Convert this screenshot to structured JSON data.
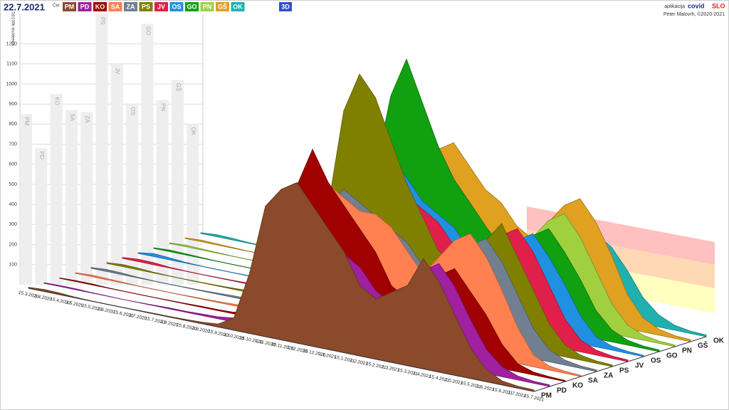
{
  "chart_data": {
    "type": "bar3d",
    "title": "22.7.2021",
    "subtitle": "Čet",
    "y_label": "7d/100k incidenca",
    "mode_button": "3D",
    "app_label": "aplikacija",
    "brand": "covid",
    "brand_suffix": "SLO",
    "author": "Peter Malovrh, ©2020-2021",
    "ylim": [
      0,
      1300
    ],
    "yticks": [
      100,
      200,
      300,
      400,
      500,
      600,
      700,
      800,
      900,
      1000,
      1100,
      1200
    ],
    "categories": [
      "15.3.2020",
      "1.4.2020",
      "15.4.2020",
      "1.5.2020",
      "15.5.2020",
      "1.6.2020",
      "15.6.2020",
      "1.7.2020",
      "15.7.2020",
      "1.8.2020",
      "15.8.2020",
      "1.9.2020",
      "15.9.2020",
      "1.10.2020",
      "15.10.2020",
      "1.11.2020",
      "15.11.2020",
      "1.12.2020",
      "15.12.2020",
      "1.1.2021",
      "15.1.2021",
      "1.2.2021",
      "15.2.2021",
      "1.3.2021",
      "15.3.2021",
      "1.4.2021",
      "15.4.2021",
      "1.5.2021",
      "15.5.2021",
      "1.6.2021",
      "15.6.2021",
      "1.7.2021",
      "15.7.2021"
    ],
    "wall_values": [
      850,
      680,
      950,
      870,
      860,
      1350,
      1100,
      900,
      1300,
      920,
      1020,
      800
    ],
    "series": [
      {
        "name": "PM",
        "color": "#8b4a2b",
        "values": [
          5,
          10,
          8,
          3,
          1,
          1,
          1,
          2,
          3,
          3,
          5,
          8,
          15,
          60,
          300,
          650,
          750,
          800,
          700,
          600,
          500,
          350,
          300,
          350,
          400,
          550,
          450,
          300,
          150,
          60,
          20,
          10,
          8
        ]
      },
      {
        "name": "PD",
        "color": "#a020a0",
        "values": [
          3,
          5,
          5,
          2,
          1,
          0,
          1,
          3,
          5,
          5,
          8,
          10,
          20,
          50,
          200,
          500,
          600,
          550,
          500,
          450,
          400,
          300,
          250,
          350,
          450,
          500,
          400,
          250,
          120,
          50,
          20,
          10,
          8
        ]
      },
      {
        "name": "KO",
        "color": "#a00000",
        "values": [
          2,
          5,
          5,
          2,
          1,
          1,
          1,
          2,
          3,
          5,
          5,
          8,
          30,
          80,
          350,
          700,
          900,
          750,
          650,
          550,
          450,
          300,
          250,
          300,
          400,
          450,
          350,
          250,
          120,
          40,
          15,
          8,
          5
        ]
      },
      {
        "name": "SA",
        "color": "#ff8050",
        "values": [
          3,
          8,
          6,
          3,
          1,
          1,
          1,
          2,
          3,
          5,
          8,
          10,
          25,
          70,
          300,
          600,
          700,
          650,
          600,
          600,
          550,
          450,
          350,
          450,
          550,
          600,
          500,
          350,
          180,
          60,
          20,
          10,
          6
        ]
      },
      {
        "name": "ZA",
        "color": "#708090",
        "values": [
          5,
          10,
          8,
          3,
          1,
          1,
          2,
          3,
          5,
          8,
          10,
          15,
          40,
          100,
          350,
          550,
          650,
          600,
          550,
          500,
          450,
          350,
          300,
          400,
          500,
          550,
          450,
          300,
          150,
          60,
          25,
          12,
          8
        ]
      },
      {
        "name": "PS",
        "color": "#808000",
        "values": [
          4,
          10,
          8,
          3,
          1,
          1,
          2,
          3,
          5,
          8,
          10,
          15,
          40,
          120,
          500,
          1000,
          1200,
          1100,
          900,
          700,
          550,
          400,
          350,
          400,
          500,
          600,
          450,
          300,
          150,
          60,
          25,
          12,
          8
        ]
      },
      {
        "name": "JV",
        "color": "#e0204a",
        "values": [
          5,
          12,
          10,
          4,
          2,
          1,
          2,
          3,
          5,
          8,
          12,
          18,
          50,
          120,
          400,
          700,
          800,
          700,
          600,
          550,
          500,
          400,
          350,
          400,
          500,
          550,
          450,
          300,
          150,
          60,
          25,
          12,
          8
        ]
      },
      {
        "name": "OS",
        "color": "#2090e0",
        "values": [
          4,
          15,
          10,
          4,
          1,
          1,
          1,
          2,
          4,
          6,
          10,
          15,
          40,
          100,
          350,
          600,
          750,
          650,
          550,
          500,
          450,
          350,
          300,
          350,
          450,
          500,
          400,
          280,
          140,
          50,
          20,
          10,
          6
        ]
      },
      {
        "name": "GO",
        "color": "#10a010",
        "values": [
          3,
          8,
          6,
          3,
          1,
          1,
          1,
          2,
          4,
          6,
          10,
          15,
          40,
          150,
          600,
          1000,
          1200,
          1000,
          800,
          650,
          550,
          450,
          350,
          400,
          450,
          500,
          400,
          280,
          140,
          60,
          25,
          12,
          8
        ]
      },
      {
        "name": "PN",
        "color": "#a0d040",
        "values": [
          3,
          8,
          6,
          3,
          1,
          1,
          1,
          2,
          4,
          6,
          10,
          15,
          30,
          90,
          300,
          500,
          600,
          550,
          500,
          450,
          400,
          350,
          300,
          400,
          500,
          550,
          450,
          300,
          150,
          60,
          25,
          12,
          8
        ]
      },
      {
        "name": "GŠ",
        "color": "#e0a020",
        "values": [
          3,
          8,
          6,
          3,
          1,
          1,
          1,
          2,
          4,
          6,
          10,
          12,
          30,
          80,
          250,
          450,
          700,
          750,
          650,
          550,
          500,
          400,
          350,
          450,
          550,
          600,
          500,
          350,
          170,
          70,
          30,
          14,
          10
        ]
      },
      {
        "name": "OK",
        "color": "#20b0b0",
        "values": [
          4,
          10,
          8,
          4,
          2,
          1,
          1,
          2,
          4,
          6,
          10,
          15,
          35,
          90,
          250,
          400,
          450,
          420,
          400,
          380,
          350,
          300,
          280,
          300,
          350,
          400,
          350,
          250,
          130,
          60,
          25,
          12,
          8
        ]
      }
    ]
  }
}
